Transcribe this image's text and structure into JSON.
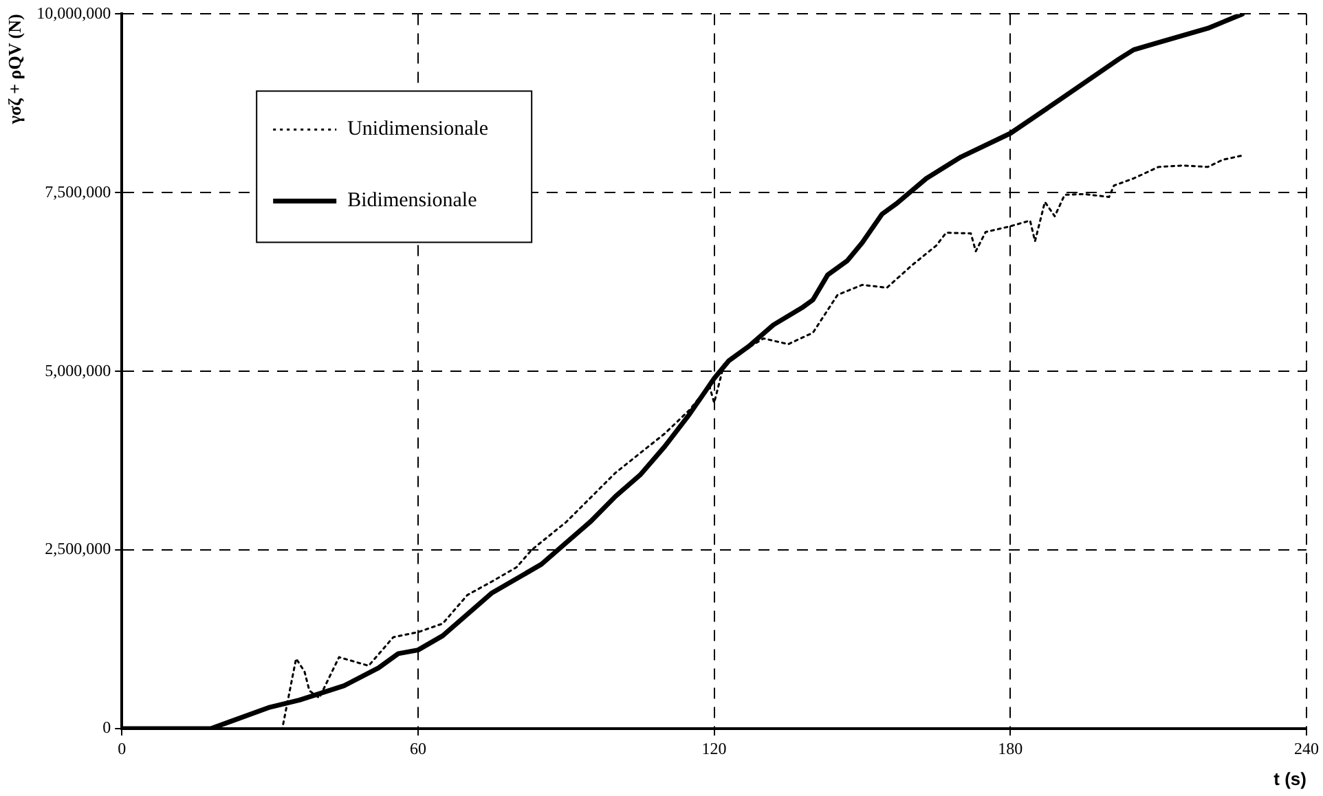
{
  "chart_data": {
    "type": "line",
    "xlabel": "t (s)",
    "ylabel": "γσζ + ρQV (N)",
    "xlim": [
      0,
      240
    ],
    "xticks": [
      0,
      60,
      120,
      180,
      240
    ],
    "ylim": [
      0,
      10000000
    ],
    "yticks": [
      {
        "value": 0,
        "label": "0"
      },
      {
        "value": 2500000,
        "label": "2,500,000"
      },
      {
        "value": 5000000,
        "label": "5,000,000"
      },
      {
        "value": 7500000,
        "label": "7,500,000"
      },
      {
        "value": 10000000,
        "label": "10,000,000"
      }
    ],
    "grid": true,
    "legend": "top left",
    "marker": "none",
    "series": [
      {
        "name": "Unidimensionale",
        "color": "#000000",
        "line_style": "dotted",
        "x": [
          0,
          20,
          32,
          32.5,
          35.3,
          37,
          38,
          40,
          44,
          50,
          55,
          60,
          65,
          70,
          75,
          80,
          83,
          90,
          100,
          110,
          115,
          119,
          120,
          122,
          125,
          130,
          135,
          140,
          145,
          150,
          155,
          160,
          165,
          167,
          172,
          173,
          175,
          180,
          184,
          185,
          187,
          189,
          191,
          195,
          200,
          201,
          205,
          210,
          215,
          220,
          223,
          227
        ],
        "values": [
          0,
          0,
          0,
          0,
          980000,
          800000,
          530000,
          430000,
          1000000,
          880000,
          1280000,
          1350000,
          1470000,
          1870000,
          2060000,
          2260000,
          2500000,
          2890000,
          3580000,
          4130000,
          4460000,
          4800000,
          4560000,
          5100000,
          5250000,
          5460000,
          5380000,
          5540000,
          6070000,
          6210000,
          6170000,
          6480000,
          6760000,
          6940000,
          6930000,
          6680000,
          6950000,
          7030000,
          7110000,
          6820000,
          7370000,
          7170000,
          7470000,
          7480000,
          7440000,
          7600000,
          7700000,
          7860000,
          7880000,
          7860000,
          7960000,
          8020000
        ]
      },
      {
        "name": "Bidimensionale",
        "color": "#000000",
        "line_style": "solid",
        "x": [
          0,
          18,
          22,
          30,
          36,
          45,
          52,
          56,
          60,
          65,
          70,
          75,
          80,
          85,
          90,
          95,
          100,
          105,
          110,
          115,
          120,
          123,
          127,
          132,
          138,
          140,
          143,
          147,
          150,
          154,
          157,
          163,
          170,
          180,
          190,
          202,
          205,
          210,
          220,
          227
        ],
        "values": [
          0,
          0,
          100000,
          300000,
          400000,
          600000,
          850000,
          1050000,
          1100000,
          1300000,
          1600000,
          1900000,
          2100000,
          2300000,
          2600000,
          2900000,
          3250000,
          3550000,
          3950000,
          4400000,
          4900000,
          5150000,
          5350000,
          5650000,
          5900000,
          6000000,
          6350000,
          6550000,
          6800000,
          7200000,
          7350000,
          7700000,
          8000000,
          8330000,
          8800000,
          9370000,
          9500000,
          9600000,
          9800000,
          10000000
        ]
      }
    ]
  }
}
